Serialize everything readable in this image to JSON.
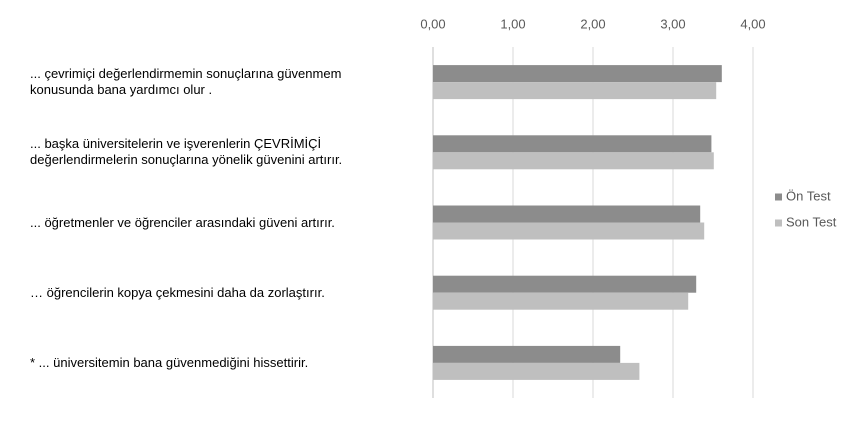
{
  "chart_data": {
    "type": "barh",
    "categories": [
      "... çevrimiçi değerlendirmemin sonuçlarına güvenmem\nkonusunda bana yardımcı olur .",
      "... başka üniversitelerin ve işverenlerin ÇEVRİMİÇİ\ndeğerlendirmelerin sonuçlarına yönelik güvenini artırır.",
      "... öğretmenler ve öğrenciler arasındaki güveni artırır.",
      "… öğrencilerin kopya çekmesini daha da zorlaştırır.",
      "* ... üniversitemin bana güvenmediğini hissettirir."
    ],
    "series": [
      {
        "name": "Ön Test",
        "color": "#8c8c8c",
        "values": [
          3.61,
          3.48,
          3.34,
          3.29,
          2.34
        ]
      },
      {
        "name": "Son Test",
        "color": "#bfbfbf",
        "values": [
          3.54,
          3.51,
          3.39,
          3.19,
          2.58
        ]
      }
    ],
    "xlim": [
      0,
      4
    ],
    "xticks": [
      {
        "value": 0,
        "label": "0,00"
      },
      {
        "value": 1,
        "label": "1,00"
      },
      {
        "value": 2,
        "label": "2,00"
      },
      {
        "value": 3,
        "label": "3,00"
      },
      {
        "value": 4,
        "label": "4,00"
      }
    ],
    "grid": true,
    "legend": "right"
  }
}
